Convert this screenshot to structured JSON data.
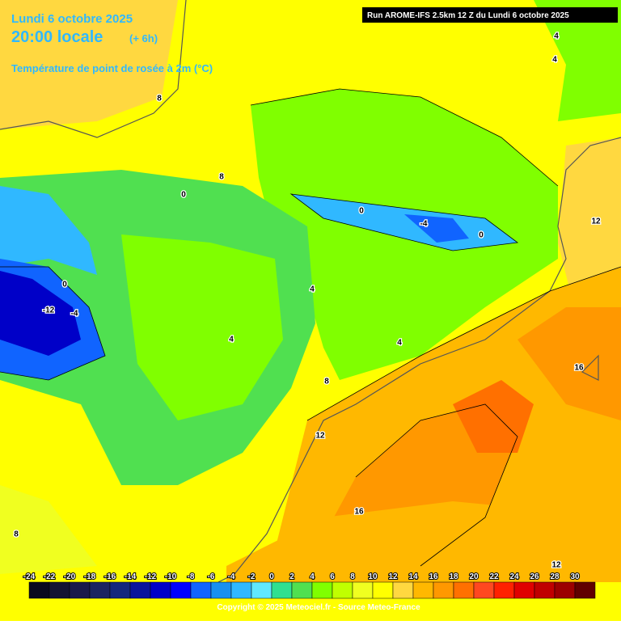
{
  "header": {
    "date": "Lundi 6 octobre 2025",
    "time": "20:00 locale",
    "offset": "(+ 6h)",
    "parameter": "Température de point de rosée à 2m (°C)",
    "run": "Run AROME-IFS 2.5km 12 Z du Lundi 6 octobre 2025"
  },
  "contour_labels": [
    8,
    8,
    0,
    0,
    -4,
    0,
    12,
    4,
    4,
    0,
    -12,
    -4,
    4,
    4,
    4,
    16,
    8,
    12,
    16,
    8,
    12
  ],
  "legend": {
    "ticks": [
      -24,
      -22,
      -20,
      -18,
      -16,
      -14,
      -12,
      -10,
      -8,
      -6,
      -4,
      -2,
      0,
      2,
      4,
      6,
      8,
      10,
      12,
      14,
      16,
      18,
      20,
      22,
      24,
      26,
      28,
      30
    ],
    "colors": [
      "#0a0a1e",
      "#141432",
      "#1a1a4a",
      "#1c2460",
      "#14287c",
      "#0a149c",
      "#0000c8",
      "#0000ff",
      "#1064ff",
      "#1890f0",
      "#30b8ff",
      "#60e8ff",
      "#30e090",
      "#50e050",
      "#80ff00",
      "#c0ff00",
      "#f0ff20",
      "#ffff00",
      "#ffd840",
      "#ffb800",
      "#ff9800",
      "#ff7000",
      "#ff4820",
      "#ff2000",
      "#e00000",
      "#c00000",
      "#9c0000",
      "#600000"
    ]
  },
  "footer": {
    "copyright": "Copyright © 2025 Meteociel.fr - Source Meteo-France"
  }
}
